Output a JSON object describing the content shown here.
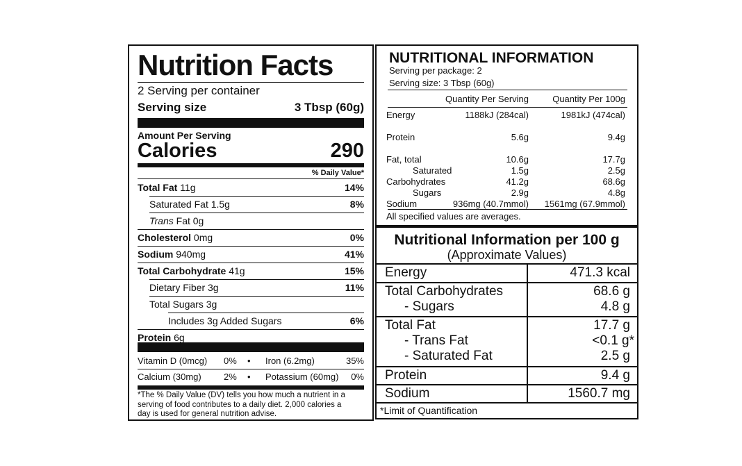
{
  "nutrition_facts": {
    "title": "Nutrition Facts",
    "servings": "2 Serving per container",
    "serving_size_label": "Serving size",
    "serving_size_value": "3 Tbsp (60g)",
    "amount_per_serving": "Amount Per Serving",
    "calories_label": "Calories",
    "calories_value": "290",
    "daily_value_header": "% Daily Value*",
    "rows": [
      {
        "bold": "Total Fat",
        "rest": " 11g",
        "pct": "14%"
      },
      {
        "bold": "",
        "rest": "Saturated Fat 1.5g",
        "pct": "8%"
      },
      {
        "italic": "Trans",
        "rest": " Fat 0g",
        "pct": ""
      },
      {
        "bold": "Cholesterol",
        "rest": " 0mg",
        "pct": "0%"
      },
      {
        "bold": "Sodium",
        "rest": " 940mg",
        "pct": "41%"
      },
      {
        "bold": "Total Carbohydrate",
        "rest": " 41g",
        "pct": "15%"
      },
      {
        "bold": "",
        "rest": "Dietary Fiber 3g",
        "pct": "11%"
      },
      {
        "bold": "",
        "rest": "Total Sugars 3g",
        "pct": ""
      },
      {
        "bold": "",
        "rest": "Includes 3g Added Sugars",
        "pct": "6%"
      },
      {
        "bold": "Protein",
        "rest": " 6g",
        "pct": ""
      }
    ],
    "vitamins": [
      {
        "name": "Vitamin D (0mcg)",
        "pct": "0%",
        "name2": "Iron (6.2mg)",
        "pct2": "35%"
      },
      {
        "name": "Calcium (30mg)",
        "pct": "2%",
        "name2": "Potassium (60mg)",
        "pct2": "0%"
      }
    ],
    "bullet": "•",
    "footnote_1": "*The % Daily Value (DV) tells you how much a nutrient in a",
    "footnote_2": "serving of food contributes to a daily diet. 2,000 calories a",
    "footnote_3": "day is used for general nutrition advise."
  },
  "nutritional_information": {
    "title": "NUTRITIONAL INFORMATION",
    "servings_per_package": "Serving per package: 2",
    "serving_size": "Serving size:  3 Tbsp (60g)",
    "col_per_serving": "Quantity Per Serving",
    "col_per_100g": "Quantity Per 100g",
    "rows": [
      {
        "name": "Energy",
        "serving": "1188kJ (284cal)",
        "per100": "1981kJ (474cal)"
      },
      {
        "name": "Protein",
        "serving": "5.6g",
        "per100": "9.4g"
      },
      {
        "name": "Fat, total",
        "serving": "10.6g",
        "per100": "17.7g"
      },
      {
        "name": "Saturated",
        "serving": "1.5g",
        "per100": "2.5g"
      },
      {
        "name": "Carbohydrates",
        "serving": "41.2g",
        "per100": "68.6g"
      },
      {
        "name": "Sugars",
        "serving": "2.9g",
        "per100": "4.8g"
      },
      {
        "name": "Sodium",
        "serving": "936mg (40.7mmol)",
        "per100": "1561mg (67.9mmol)"
      }
    ],
    "footer": "All specified values are averages."
  },
  "per_100g": {
    "title": "Nutritional Information per 100 g",
    "subtitle": "(Approximate Values)",
    "rows": [
      {
        "name": "Energy",
        "value": "471.3 kcal"
      },
      {
        "name": "Total Carbohydrates",
        "value": "68.6 g"
      },
      {
        "name": "- Sugars",
        "value": "4.8 g"
      },
      {
        "name": "Total Fat",
        "value": "17.7 g"
      },
      {
        "name": "- Trans Fat",
        "value": "<0.1 g*"
      },
      {
        "name": "- Saturated Fat",
        "value": "2.5 g"
      },
      {
        "name": "Protein",
        "value": "9.4 g"
      },
      {
        "name": "Sodium",
        "value": "1560.7 mg"
      }
    ],
    "footnote": "*Limit of Quantification"
  }
}
